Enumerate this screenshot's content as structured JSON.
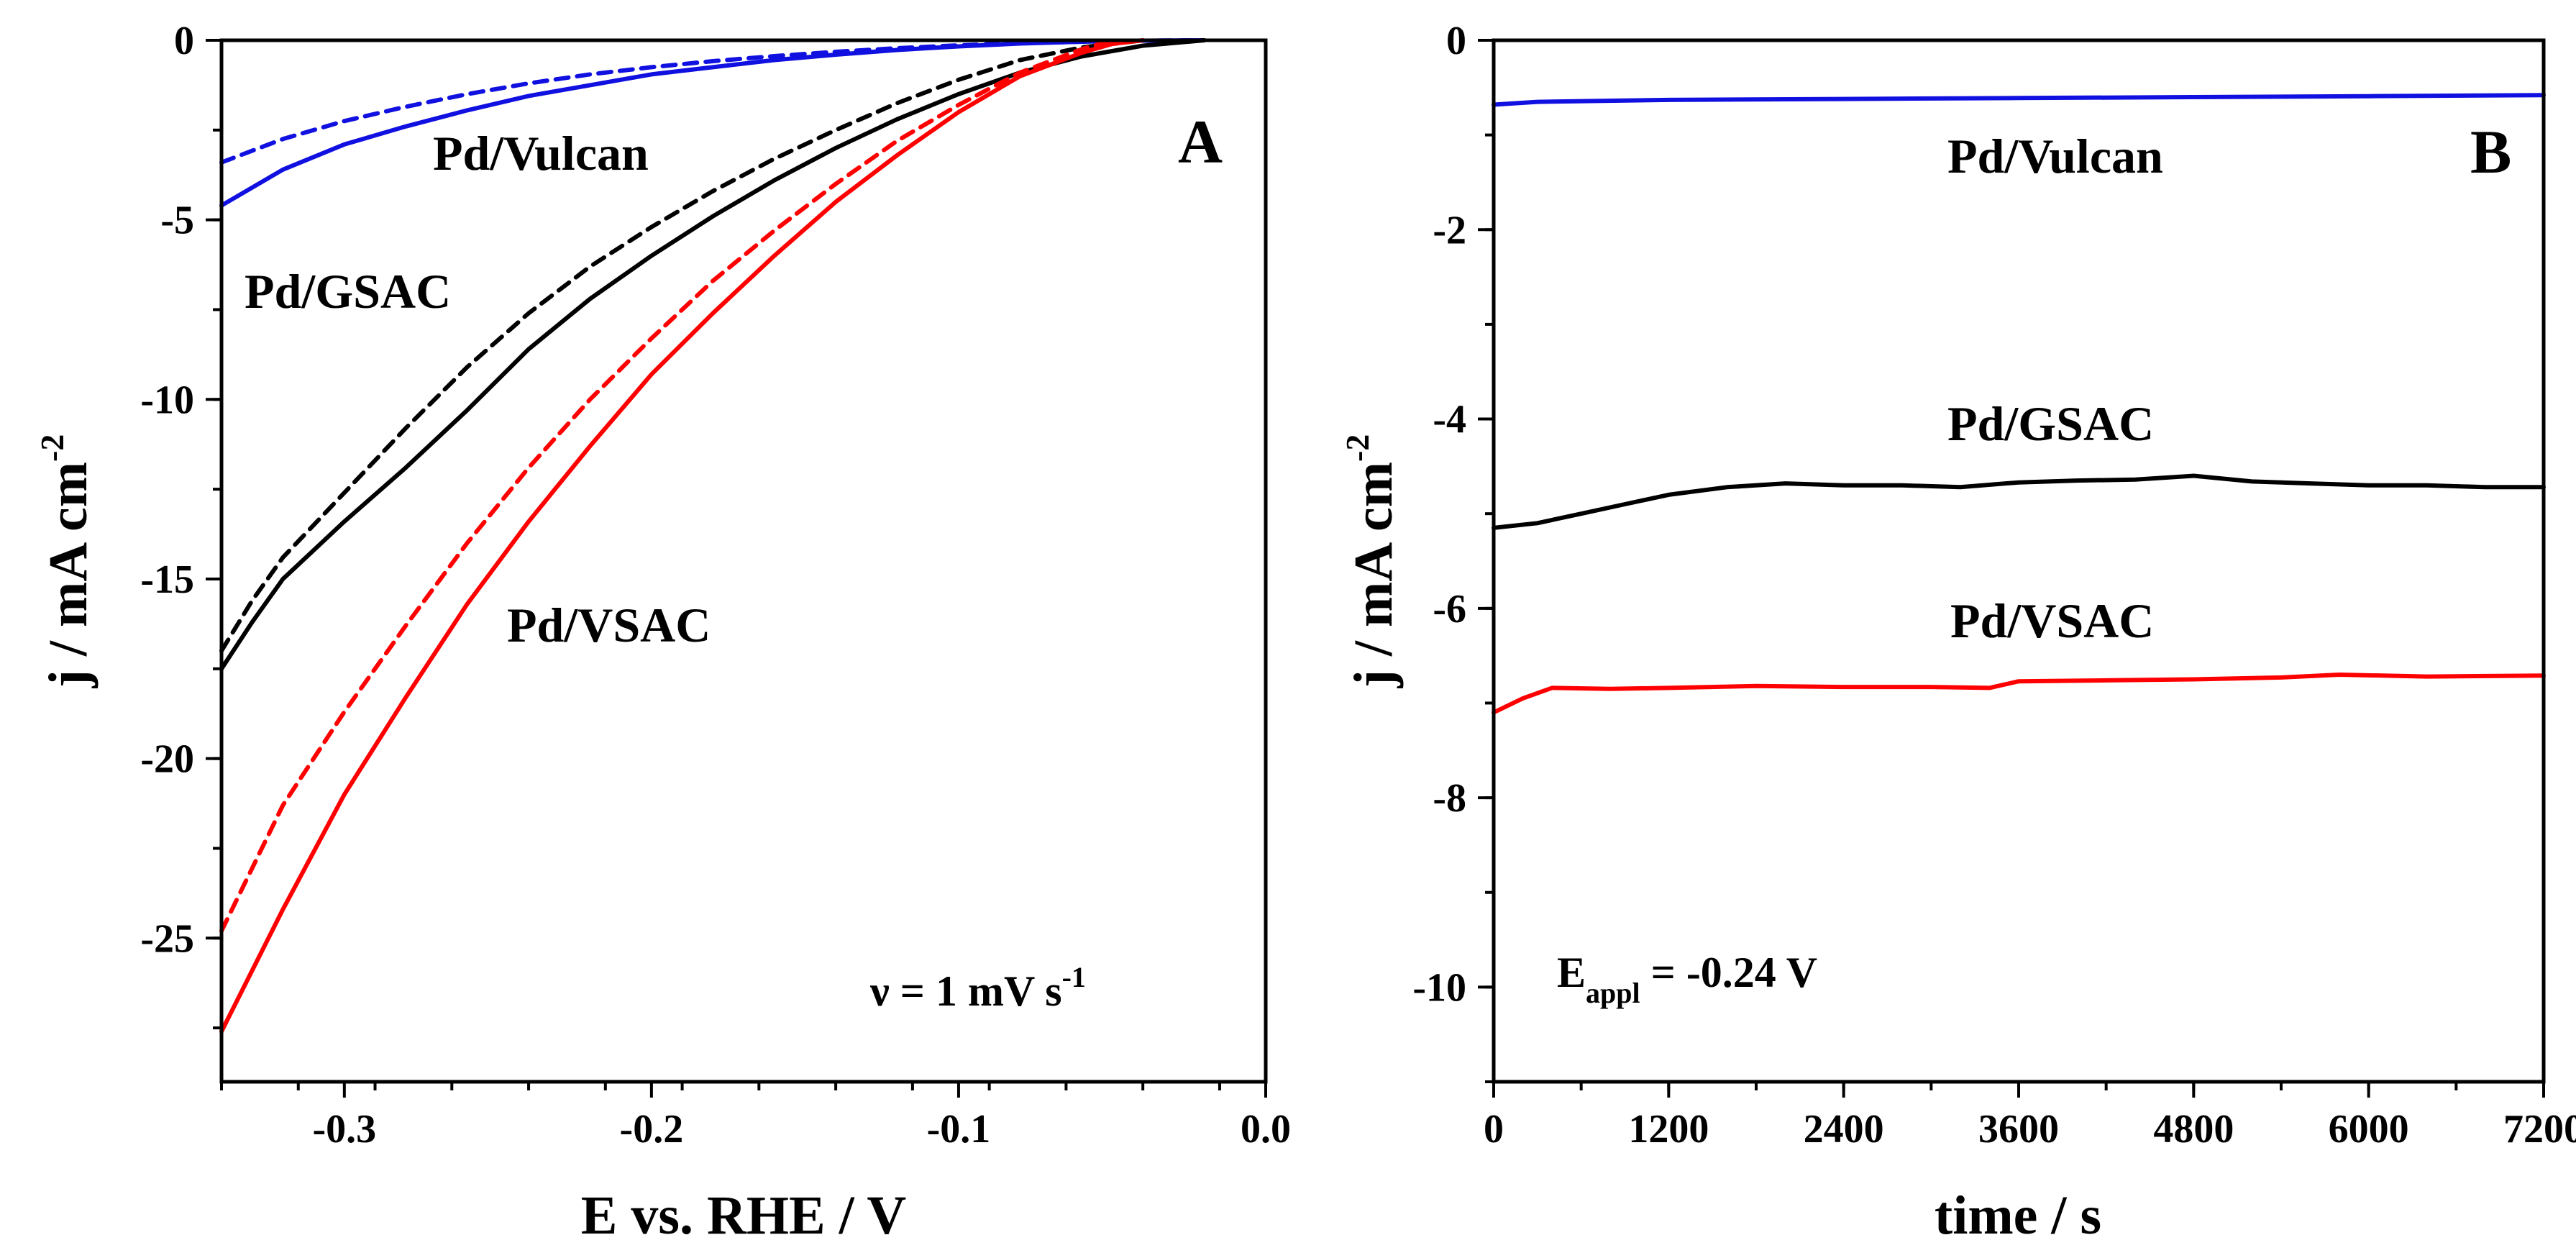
{
  "chart_data": [
    {
      "panel": "A",
      "type": "line",
      "xlabel": "E vs. RHE / V",
      "ylabel": "j / mA cm",
      "ylabel_sup": "-2",
      "xlim": [
        -0.34,
        0.0
      ],
      "ylim": [
        -29,
        0
      ],
      "xticks": [
        -0.3,
        -0.2,
        -0.1,
        0.0
      ],
      "xtick_labels": [
        "-0.3",
        "-0.2",
        "-0.1",
        "0.0"
      ],
      "yticks": [
        0,
        -5,
        -10,
        -15,
        -20,
        -25
      ],
      "ytick_labels": [
        "0",
        "-5",
        "-10",
        "-15",
        "-20",
        "-25"
      ],
      "grid": false,
      "panel_label": "A",
      "annotation": {
        "main": "ν = 1 mV s",
        "sup": "-1"
      },
      "series": [
        {
          "name": "Pd/Vulcan",
          "style": "solid",
          "color": "#1010e0",
          "x": [
            -0.34,
            -0.32,
            -0.3,
            -0.28,
            -0.26,
            -0.24,
            -0.22,
            -0.2,
            -0.18,
            -0.16,
            -0.14,
            -0.12,
            -0.1,
            -0.08,
            -0.06,
            -0.04,
            -0.02
          ],
          "y": [
            -4.6,
            -3.6,
            -2.9,
            -2.4,
            -1.95,
            -1.55,
            -1.25,
            -0.95,
            -0.75,
            -0.55,
            -0.4,
            -0.27,
            -0.17,
            -0.09,
            -0.04,
            -0.01,
            0.0
          ]
        },
        {
          "name": "Pd/Vulcan (dashed)",
          "style": "dashed",
          "color": "#1010e0",
          "x": [
            -0.34,
            -0.32,
            -0.3,
            -0.28,
            -0.26,
            -0.24,
            -0.22,
            -0.2,
            -0.18,
            -0.16,
            -0.14,
            -0.12,
            -0.1,
            -0.08,
            -0.06,
            -0.04,
            -0.02
          ],
          "y": [
            -3.4,
            -2.75,
            -2.25,
            -1.85,
            -1.5,
            -1.2,
            -0.95,
            -0.75,
            -0.58,
            -0.44,
            -0.32,
            -0.22,
            -0.14,
            -0.08,
            -0.04,
            -0.01,
            0.0
          ]
        },
        {
          "name": "Pd/GSAC",
          "style": "solid",
          "color": "#000000",
          "x": [
            -0.34,
            -0.33,
            -0.32,
            -0.3,
            -0.28,
            -0.26,
            -0.24,
            -0.22,
            -0.2,
            -0.18,
            -0.16,
            -0.14,
            -0.12,
            -0.1,
            -0.08,
            -0.06,
            -0.04,
            -0.02
          ],
          "y": [
            -17.5,
            -16.2,
            -15.0,
            -13.4,
            -11.9,
            -10.3,
            -8.6,
            -7.2,
            -6.0,
            -4.9,
            -3.9,
            -3.0,
            -2.2,
            -1.5,
            -0.9,
            -0.45,
            -0.15,
            0.0
          ]
        },
        {
          "name": "Pd/GSAC (dashed)",
          "style": "dashed",
          "color": "#000000",
          "x": [
            -0.34,
            -0.33,
            -0.32,
            -0.3,
            -0.28,
            -0.26,
            -0.24,
            -0.22,
            -0.2,
            -0.18,
            -0.16,
            -0.14,
            -0.12,
            -0.1,
            -0.08,
            -0.06,
            -0.04
          ],
          "y": [
            -17.0,
            -15.6,
            -14.4,
            -12.6,
            -10.8,
            -9.1,
            -7.6,
            -6.3,
            -5.2,
            -4.2,
            -3.3,
            -2.5,
            -1.75,
            -1.1,
            -0.55,
            -0.2,
            0.0
          ]
        },
        {
          "name": "Pd/VSAC",
          "style": "solid",
          "color": "#ff0000",
          "x": [
            -0.34,
            -0.32,
            -0.3,
            -0.28,
            -0.26,
            -0.24,
            -0.22,
            -0.2,
            -0.18,
            -0.16,
            -0.14,
            -0.12,
            -0.1,
            -0.08,
            -0.06,
            -0.05,
            -0.04
          ],
          "y": [
            -27.6,
            -24.2,
            -21.0,
            -18.3,
            -15.7,
            -13.4,
            -11.3,
            -9.3,
            -7.6,
            -6.0,
            -4.5,
            -3.2,
            -2.0,
            -1.0,
            -0.35,
            -0.1,
            0.0
          ]
        },
        {
          "name": "Pd/VSAC (dashed)",
          "style": "dashed",
          "color": "#ff0000",
          "x": [
            -0.34,
            -0.32,
            -0.3,
            -0.28,
            -0.26,
            -0.24,
            -0.22,
            -0.2,
            -0.18,
            -0.16,
            -0.14,
            -0.12,
            -0.1,
            -0.08,
            -0.06,
            -0.05
          ],
          "y": [
            -24.8,
            -21.3,
            -18.7,
            -16.3,
            -14.0,
            -11.9,
            -10.0,
            -8.3,
            -6.7,
            -5.3,
            -4.0,
            -2.8,
            -1.8,
            -0.9,
            -0.25,
            0.0
          ]
        }
      ],
      "series_labels": [
        "Pd/Vulcan",
        "Pd/GSAC",
        "Pd/VSAC"
      ]
    },
    {
      "panel": "B",
      "type": "line",
      "xlabel": "time / s",
      "ylabel": "j / mA cm",
      "ylabel_sup": "-2",
      "xlim": [
        0,
        7200
      ],
      "ylim": [
        -11,
        0
      ],
      "xticks": [
        0,
        1200,
        2400,
        3600,
        4800,
        6000,
        7200
      ],
      "xtick_labels": [
        "0",
        "1200",
        "2400",
        "3600",
        "4800",
        "6000",
        "7200"
      ],
      "yticks": [
        0,
        -2,
        -4,
        -6,
        -8,
        -10
      ],
      "ytick_labels": [
        "0",
        "-2",
        "-4",
        "-6",
        "-8",
        "-10"
      ],
      "grid": false,
      "panel_label": "B",
      "annotation": {
        "main": "E",
        "sub": "appl",
        "rest": " = -0.24 V"
      },
      "series": [
        {
          "name": "Pd/Vulcan",
          "style": "solid",
          "color": "#1010e0",
          "x": [
            0,
            300,
            1200,
            2400,
            3600,
            4800,
            6000,
            7200
          ],
          "y": [
            -0.68,
            -0.65,
            -0.63,
            -0.62,
            -0.61,
            -0.6,
            -0.59,
            -0.58
          ]
        },
        {
          "name": "Pd/GSAC",
          "style": "solid",
          "color": "#000000",
          "x": [
            0,
            300,
            600,
            900,
            1200,
            1600,
            2000,
            2400,
            2800,
            3200,
            3600,
            4000,
            4400,
            4800,
            5200,
            5600,
            6000,
            6400,
            6800,
            7200
          ],
          "y": [
            -5.15,
            -5.1,
            -5.0,
            -4.9,
            -4.8,
            -4.72,
            -4.68,
            -4.7,
            -4.7,
            -4.72,
            -4.67,
            -4.65,
            -4.64,
            -4.6,
            -4.66,
            -4.68,
            -4.7,
            -4.7,
            -4.72,
            -4.72
          ]
        },
        {
          "name": "Pd/VSAC",
          "style": "solid",
          "color": "#ff0000",
          "x": [
            0,
            200,
            400,
            800,
            1200,
            1800,
            2400,
            3000,
            3400,
            3600,
            4200,
            4800,
            5400,
            5800,
            6400,
            7200
          ],
          "y": [
            -7.1,
            -6.95,
            -6.84,
            -6.85,
            -6.84,
            -6.82,
            -6.83,
            -6.83,
            -6.84,
            -6.77,
            -6.76,
            -6.75,
            -6.73,
            -6.7,
            -6.72,
            -6.71
          ]
        }
      ],
      "series_labels": [
        "Pd/Vulcan",
        "Pd/GSAC",
        "Pd/VSAC"
      ]
    }
  ]
}
